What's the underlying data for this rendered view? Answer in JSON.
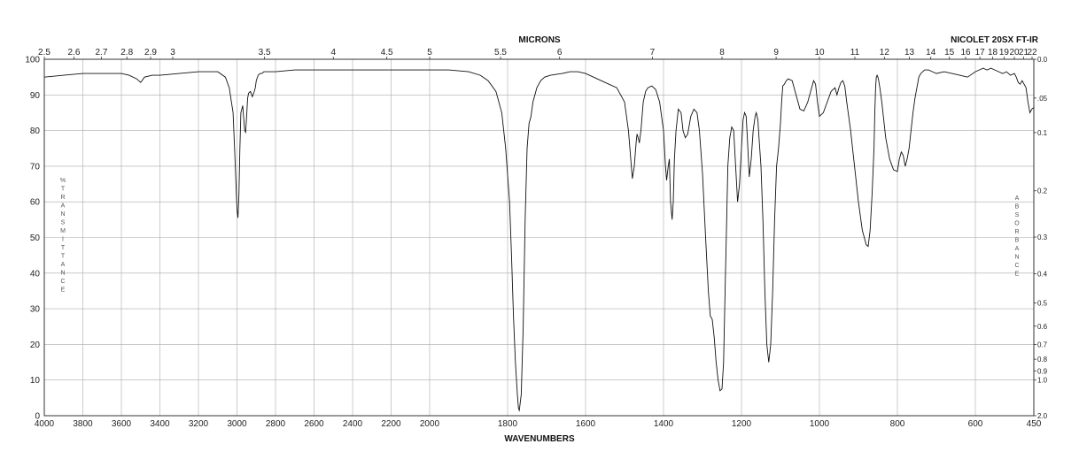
{
  "chart_data": {
    "type": "line",
    "title_left": "MICRONS",
    "title_right": "NICOLET 20SX FT-IR",
    "xlabel": "WAVENUMBERS",
    "ylabel_left": "%TRANSMITTANCE",
    "ylabel_right": "ABSORBANCE",
    "grid": true,
    "xlim": [
      4000,
      450
    ],
    "ylim": [
      0,
      100
    ],
    "x_ticks": [
      4000,
      3800,
      3600,
      3400,
      3200,
      3000,
      2800,
      2600,
      2400,
      2200,
      2000,
      1800,
      1600,
      1400,
      1200,
      1000,
      800,
      600,
      450
    ],
    "y_ticks": [
      0,
      10,
      20,
      30,
      40,
      50,
      60,
      70,
      80,
      90,
      100
    ],
    "micron_ticks": [
      {
        "label": "2.5",
        "um": 2.5
      },
      {
        "label": "2.6",
        "um": 2.6
      },
      {
        "label": "2.7",
        "um": 2.7
      },
      {
        "label": "2.8",
        "um": 2.8
      },
      {
        "label": "2.9",
        "um": 2.9
      },
      {
        "label": "3",
        "um": 3.0
      },
      {
        "label": "3.5",
        "um": 3.5
      },
      {
        "label": "4",
        "um": 4.0
      },
      {
        "label": "4.5",
        "um": 4.5
      },
      {
        "label": "5",
        "um": 5.0
      },
      {
        "label": "5.5",
        "um": 5.5
      },
      {
        "label": "6",
        "um": 6.0
      },
      {
        "label": "7",
        "um": 7.0
      },
      {
        "label": "8",
        "um": 8.0
      },
      {
        "label": "9",
        "um": 9.0
      },
      {
        "label": "10",
        "um": 10.0
      },
      {
        "label": "11",
        "um": 11.0
      },
      {
        "label": "12",
        "um": 12.0
      },
      {
        "label": "13",
        "um": 13.0
      },
      {
        "label": "14",
        "um": 14.0
      },
      {
        "label": "15",
        "um": 15.0
      },
      {
        "label": "16",
        "um": 16.0
      },
      {
        "label": "17",
        "um": 17.0
      },
      {
        "label": "18",
        "um": 18.0
      },
      {
        "label": "19",
        "um": 19.0
      },
      {
        "label": "20",
        "um": 20.0
      },
      {
        "label": "21",
        "um": 21.0
      },
      {
        "label": "22",
        "um": 22.0
      }
    ],
    "absorbance_ticks": [
      {
        "label": "0.0",
        "a": 0.0
      },
      {
        "label": ".05",
        "a": 0.05
      },
      {
        "label": "0.1",
        "a": 0.1
      },
      {
        "label": "0.2",
        "a": 0.2
      },
      {
        "label": "0.3",
        "a": 0.3
      },
      {
        "label": "0.4",
        "a": 0.4
      },
      {
        "label": "0.5",
        "a": 0.5
      },
      {
        "label": "0.6",
        "a": 0.6
      },
      {
        "label": "0.7",
        "a": 0.7
      },
      {
        "label": "0.8",
        "a": 0.8
      },
      {
        "label": "0.9",
        "a": 0.9
      },
      {
        "label": "1.0",
        "a": 1.0
      },
      {
        "label": "2.0",
        "a": 2.0
      }
    ],
    "series": [
      {
        "x": [
          4000,
          3900,
          3800,
          3700,
          3600,
          3560,
          3520,
          3500,
          3480,
          3440,
          3400,
          3300,
          3200,
          3100,
          3060,
          3040,
          3020,
          3010,
          3000,
          2995,
          2990,
          2985,
          2980,
          2970,
          2960,
          2955,
          2950,
          2945,
          2940,
          2930,
          2920,
          2910,
          2905,
          2900,
          2890,
          2880,
          2870,
          2860,
          2800,
          2700,
          2600,
          2500,
          2400,
          2300,
          2200,
          2100,
          2000,
          1950,
          1900,
          1870,
          1850,
          1830,
          1815,
          1805,
          1795,
          1790,
          1785,
          1780,
          1775,
          1772,
          1770,
          1765,
          1760,
          1755,
          1750,
          1745,
          1740,
          1735,
          1725,
          1715,
          1705,
          1690,
          1660,
          1640,
          1620,
          1600,
          1560,
          1520,
          1500,
          1490,
          1480,
          1475,
          1470,
          1468,
          1465,
          1462,
          1458,
          1452,
          1446,
          1440,
          1430,
          1420,
          1410,
          1400,
          1395,
          1392,
          1388,
          1385,
          1382,
          1378,
          1375,
          1372,
          1368,
          1362,
          1355,
          1350,
          1344,
          1338,
          1330,
          1322,
          1314,
          1308,
          1300,
          1292,
          1285,
          1280,
          1275,
          1270,
          1265,
          1260,
          1255,
          1250,
          1246,
          1242,
          1238,
          1235,
          1230,
          1225,
          1220,
          1215,
          1210,
          1205,
          1200,
          1196,
          1192,
          1188,
          1185,
          1180,
          1175,
          1170,
          1165,
          1162,
          1158,
          1155,
          1150,
          1145,
          1140,
          1135,
          1130,
          1125,
          1120,
          1115,
          1110,
          1105,
          1100,
          1097,
          1094,
          1090,
          1085,
          1080,
          1070,
          1060,
          1050,
          1040,
          1030,
          1020,
          1015,
          1010,
          1005,
          1000,
          990,
          980,
          970,
          960,
          955,
          950,
          945,
          940,
          935,
          930,
          920,
          910,
          900,
          890,
          880,
          875,
          870,
          865,
          860,
          858,
          856,
          854,
          852,
          850,
          848,
          845,
          840,
          830,
          820,
          810,
          800,
          795,
          790,
          785,
          780,
          775,
          770,
          765,
          760,
          755,
          750,
          745,
          740,
          735,
          730,
          720,
          710,
          700,
          680,
          660,
          640,
          620,
          600,
          590,
          580,
          570,
          560,
          550,
          540,
          530,
          520,
          510,
          500,
          495,
          490,
          485,
          480,
          475,
          470,
          465,
          460,
          455,
          450
        ],
        "y": [
          95,
          95.5,
          96,
          96,
          96,
          95.5,
          94.5,
          93.5,
          95,
          95.5,
          95.5,
          96,
          96.5,
          96.5,
          95,
          92,
          85,
          72,
          58,
          55.5,
          62,
          75,
          85,
          87,
          80,
          79.5,
          84,
          89,
          90.5,
          91,
          89.5,
          91,
          92,
          94,
          95.5,
          96,
          96,
          96.5,
          96.5,
          97,
          97,
          97,
          97,
          97,
          97,
          97,
          97,
          97,
          96.5,
          95.5,
          94,
          91,
          85,
          75,
          60,
          45,
          28,
          15,
          6,
          2,
          1.5,
          6,
          25,
          55,
          75,
          82,
          84,
          88,
          92,
          94,
          95,
          95.5,
          96,
          96.5,
          96.5,
          96,
          94,
          92,
          88,
          80,
          66.5,
          70,
          77,
          79,
          78,
          76.5,
          80,
          88,
          91,
          92,
          92.5,
          91.5,
          88,
          80,
          70,
          66,
          70,
          72,
          60,
          55,
          60,
          72,
          80,
          86,
          85,
          80,
          78,
          79,
          84,
          86,
          85,
          80,
          68,
          50,
          35,
          28,
          27,
          22,
          15,
          10,
          7,
          7.5,
          15,
          35,
          55,
          70,
          78,
          81,
          80,
          70,
          60,
          65,
          75,
          83,
          85,
          84,
          78,
          67,
          72,
          80,
          84,
          85,
          83,
          78,
          70,
          55,
          35,
          20,
          15,
          20,
          35,
          55,
          70,
          75,
          82,
          88,
          92.5,
          93,
          94,
          94.5,
          94,
          90,
          86,
          85.5,
          88,
          92,
          94,
          93,
          88,
          84,
          85,
          88,
          91,
          92,
          90,
          92,
          93.5,
          94,
          92.5,
          88,
          80,
          70,
          60,
          52,
          48,
          47.5,
          52,
          62,
          75,
          85,
          92,
          95,
          95.5,
          95,
          94,
          92,
          88,
          78,
          72,
          69,
          68.5,
          72,
          74,
          73,
          70,
          72,
          75,
          80,
          85,
          89,
          92,
          95,
          96,
          96.5,
          97,
          97,
          96.5,
          96,
          96.5,
          96,
          95.5,
          95,
          96.5,
          97,
          97.5,
          97,
          97.5,
          97,
          96.5,
          96,
          96.5,
          95.5,
          96,
          95,
          93.5,
          93,
          94,
          93,
          92,
          88,
          85,
          86,
          86.5
        ]
      }
    ]
  }
}
